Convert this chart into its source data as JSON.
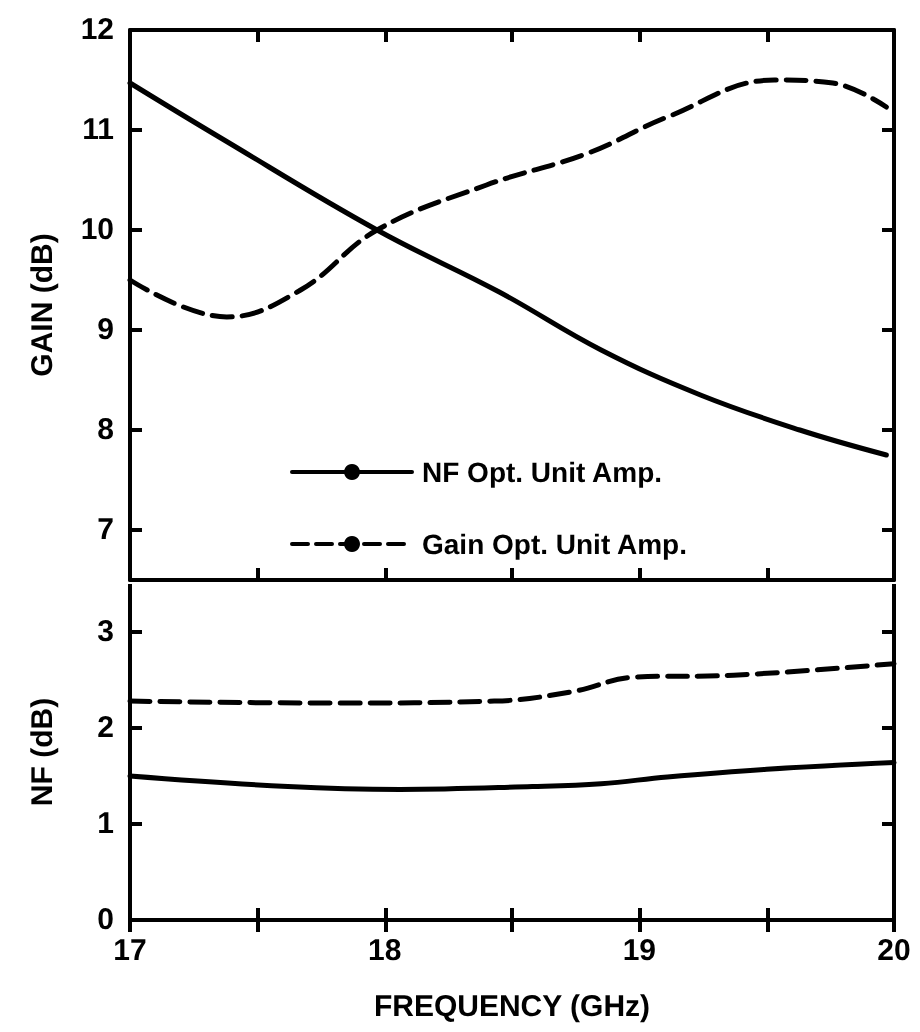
{
  "chart_data": [
    {
      "type": "line",
      "ylabel": "GAIN (dB)",
      "xlim": [
        17,
        20
      ],
      "ylim": [
        6.5,
        12
      ],
      "xticks": [
        17,
        {
          "value": 17.5,
          "label": null
        },
        18,
        {
          "value": 18.5,
          "label": null
        },
        19,
        {
          "value": 19.5,
          "label": null
        },
        20
      ],
      "yticks": [
        7,
        8,
        9,
        10,
        11,
        12
      ],
      "tick_labels": "y",
      "legend": "bottom",
      "series": [
        {
          "name": "NF Opt. Unit Amp.",
          "color": "#000000",
          "line_style": "solid",
          "x": [
            17.0,
            17.35,
            17.97,
            18.45,
            18.85,
            19.24,
            19.63,
            19.97
          ],
          "values": [
            11.47,
            10.93,
            10.0,
            9.38,
            8.8,
            8.35,
            8.0,
            7.75
          ]
        },
        {
          "name": "Gain Opt. Unit Amp.",
          "color": "#000000",
          "line_style": "dashed",
          "x": [
            17.0,
            17.38,
            17.67,
            17.97,
            18.4,
            18.8,
            19.11,
            19.53,
            19.76,
            19.97
          ],
          "values": [
            9.5,
            9.13,
            9.4,
            10.0,
            10.45,
            10.77,
            11.13,
            11.5,
            11.47,
            11.23
          ]
        }
      ]
    },
    {
      "type": "line",
      "xlabel": "FREQUENCY (GHz)",
      "ylabel": "NF (dB)",
      "xlim": [
        17,
        20
      ],
      "ylim": [
        0,
        3.5
      ],
      "xticks": [
        17,
        {
          "value": 17.5,
          "label": null
        },
        18,
        {
          "value": 18.5,
          "label": null
        },
        19,
        {
          "value": 19.5,
          "label": null
        },
        20
      ],
      "yticks": [
        0,
        1,
        2,
        3
      ],
      "series": [
        {
          "color": "#000000",
          "line_style": "solid",
          "x": [
            17.0,
            17.62,
            18.06,
            18.58,
            18.85,
            19.11,
            19.5,
            20.0
          ],
          "values": [
            1.5,
            1.39,
            1.36,
            1.39,
            1.42,
            1.49,
            1.57,
            1.64
          ]
        },
        {
          "color": "#000000",
          "line_style": "dashed",
          "x": [
            17.0,
            17.8,
            18.43,
            18.74,
            18.98,
            19.37,
            20.0
          ],
          "values": [
            2.28,
            2.26,
            2.28,
            2.38,
            2.53,
            2.55,
            2.67
          ]
        }
      ]
    }
  ]
}
